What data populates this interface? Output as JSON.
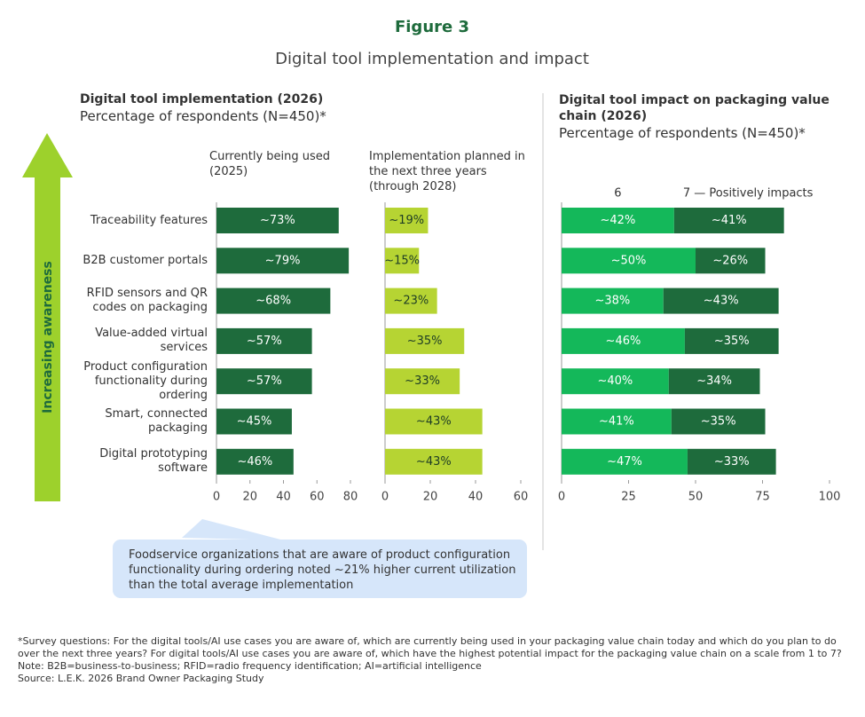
{
  "header": {
    "figure": "Figure 3",
    "title": "Digital tool implementation and impact"
  },
  "left_panel": {
    "title": "Digital tool implementation (2026)",
    "subtitle": "Percentage of respondents (N=450)*"
  },
  "arrow_label": "Increasing awareness",
  "chart_data": [
    {
      "type": "hbar",
      "title": "Currently being used (2025)",
      "categories": [
        "Traceability features",
        "B2B customer portals",
        "RFID sensors and QR codes on packaging",
        "Value-added virtual services",
        "Product configuration functionality during ordering",
        "Smart, connected packaging",
        "Digital prototyping software"
      ],
      "values": [
        73,
        79,
        68,
        57,
        57,
        45,
        46
      ],
      "value_labels": [
        "~73%",
        "~79%",
        "~68%",
        "~57%",
        "~57%",
        "~45%",
        "~46%"
      ],
      "color": "#1e6b3c",
      "label_color": "#ffffff",
      "xlim": [
        0,
        80
      ],
      "xticks": [
        0,
        20,
        40,
        60,
        80
      ]
    },
    {
      "type": "hbar",
      "title": "Implementation planned in the next three years (through 2028)",
      "values": [
        19,
        15,
        23,
        35,
        33,
        43,
        43
      ],
      "value_labels": [
        "~19%",
        "~15%",
        "~23%",
        "~35%",
        "~33%",
        "~43%",
        "~43%"
      ],
      "color": "#b6d433",
      "label_color": "#1e3d25",
      "xlim": [
        0,
        60
      ],
      "xticks": [
        0,
        20,
        40,
        60
      ]
    },
    {
      "type": "stacked_hbar",
      "title": "Digital tool impact on packaging value chain (2026)",
      "subtitle": "Percentage of respondents (N=450)*",
      "series": [
        {
          "name": "6",
          "color": "#14b85a",
          "values": [
            42,
            50,
            38,
            46,
            40,
            41,
            47
          ],
          "value_labels": [
            "~42%",
            "~50%",
            "~38%",
            "~46%",
            "~40%",
            "~41%",
            "~47%"
          ]
        },
        {
          "name": "7 — Positively impacts",
          "color": "#1e6b3c",
          "values": [
            41,
            26,
            43,
            35,
            34,
            35,
            33
          ],
          "value_labels": [
            "~41%",
            "~26%",
            "~43%",
            "~35%",
            "~34%",
            "~35%",
            "~33%"
          ]
        }
      ],
      "label_color": "#ffffff",
      "xlim": [
        0,
        100
      ],
      "xticks": [
        0,
        25,
        50,
        75,
        100
      ]
    }
  ],
  "annotation": "Foodservice organizations that are aware of product configuration functionality during ordering noted ~21% higher current utilization than the total average implementation",
  "footnotes": [
    "*Survey questions: For the digital tools/AI use cases you are aware of, which are currently being used in your packaging value chain today and which do you plan to do over the next three years? For digital tools/AI use cases you are aware of, which have the highest potential impact for the packaging value chain on a scale from 1 to 7?",
    "Note: B2B=business-to-business; RFID=radio frequency identification; AI=artificial intelligence",
    "Source: L.E.K. 2026 Brand Owner Packaging Study"
  ]
}
